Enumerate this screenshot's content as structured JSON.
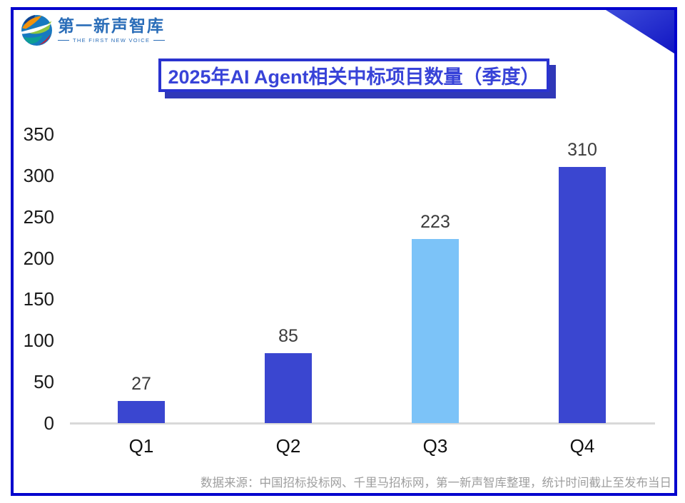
{
  "logo": {
    "name": "第一新声智库",
    "tagline": "THE FIRST NEW VOICE"
  },
  "chart_data": {
    "type": "bar",
    "title": "2025年AI Agent相关中标项目数量（季度）",
    "categories": [
      "Q1",
      "Q2",
      "Q3",
      "Q4"
    ],
    "values": [
      27,
      85,
      223,
      310
    ],
    "value_labels": [
      "27",
      "85",
      "223",
      "310"
    ],
    "xlabel": "",
    "ylabel": "",
    "ylim": [
      0,
      350
    ],
    "yticks": [
      0,
      50,
      100,
      150,
      200,
      250,
      300,
      350
    ],
    "grid": false,
    "legend": "none",
    "bar_colors": [
      "#3a46d0",
      "#3a46d0",
      "#7cc3f8",
      "#3a46d0"
    ]
  },
  "footer": {
    "source": "数据来源：中国招标投标网、千里马招标网，第一新声智库整理，统计时间截止至发布当日"
  },
  "colors": {
    "frame_border": "#0101cd",
    "bar_primary": "#3a46d0",
    "bar_highlight": "#7cc3f8",
    "title_text": "#3843d8",
    "title_border": "#2a33cf",
    "title_shadow": "#3038b8",
    "axis_line": "#d9d9d9",
    "axis_text": "#1a1a1a",
    "value_text": "#3c3c3c",
    "source_text": "#9e9e9e"
  }
}
